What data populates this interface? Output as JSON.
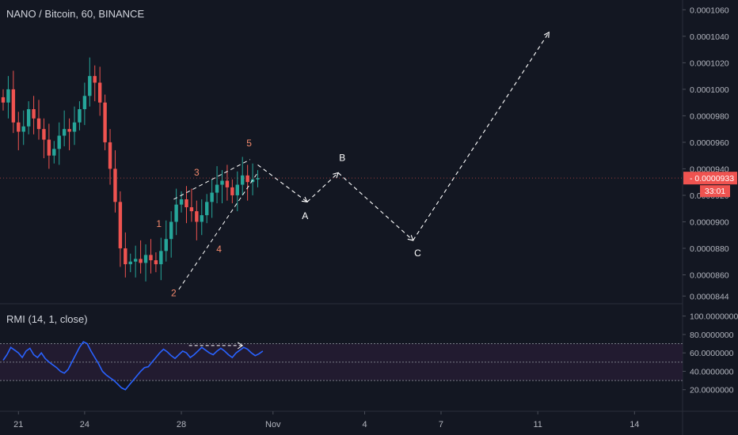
{
  "header": {
    "title": "NANO / Bitcoin, 60, BINANCE"
  },
  "indicator": {
    "title": "RMI (14, 1, close)"
  },
  "colors": {
    "background": "#131722",
    "up": "#26a69a",
    "down": "#ef5350",
    "text": "#d1d4dc",
    "axis_text": "#b2b5be",
    "price_tag": "#ef5350",
    "rmi_line": "#2962ff",
    "rmi_band_fill": "#2a1e36",
    "annotation_wave": "#f48a6d",
    "annotation_abc": "#ffffff"
  },
  "price_tag": {
    "price": "0.0000933",
    "countdown": "33:01"
  },
  "chart_data": [
    {
      "type": "candlestick",
      "title": "NANO / Bitcoin, 60, BINANCE",
      "y_axis_labels": [
        "0.0001060",
        "0.0001040",
        "0.0001020",
        "0.0001000",
        "0.0000980",
        "0.0000960",
        "0.0000940",
        "0.0000920",
        "0.0000900",
        "0.0000880",
        "0.0000860",
        "0.0000844"
      ],
      "ylim": [
        8.4e-05,
        0.0001062
      ],
      "x_axis_labels": [
        "21",
        "24",
        "28",
        "Nov",
        "4",
        "7",
        "11",
        "14"
      ],
      "x_label_index": [
        3,
        16,
        35,
        53,
        71,
        86,
        105,
        124
      ],
      "n_slots": 131,
      "visible_candles": 51,
      "closes": [
        9.9e-05,
        0.0001,
        9.75e-05,
        9.68e-05,
        9.72e-05,
        9.85e-05,
        9.78e-05,
        9.7e-05,
        9.62e-05,
        9.5e-05,
        9.55e-05,
        9.65e-05,
        9.7e-05,
        9.68e-05,
        9.75e-05,
        9.85e-05,
        9.95e-05,
        0.000101,
        0.0001005,
        9.9e-05,
        9.6e-05,
        9.4e-05,
        9.15e-05,
        8.8e-05,
        8.68e-05,
        8.7e-05,
        8.72e-05,
        8.69e-05,
        8.75e-05,
        8.71e-05,
        8.68e-05,
        8.78e-05,
        8.87e-05,
        9e-05,
        9.13e-05,
        9.17e-05,
        9.11e-05,
        9.08e-05,
        9e-05,
        9.05e-05,
        9.15e-05,
        9.22e-05,
        9.28e-05,
        9.31e-05,
        9.26e-05,
        9.2e-05,
        9.28e-05,
        9.35e-05,
        9.3e-05,
        9.32e-05,
        9.33e-05
      ],
      "wave_labels": [
        {
          "text": "1",
          "index": 30.6,
          "price": 8.96e-05
        },
        {
          "text": "2",
          "index": 33.5,
          "price": 8.44e-05
        },
        {
          "text": "3",
          "index": 38.0,
          "price": 9.35e-05
        },
        {
          "text": "4",
          "index": 42.4,
          "price": 8.77e-05
        },
        {
          "text": "5",
          "index": 48.3,
          "price": 9.57e-05
        }
      ],
      "abc_labels": [
        {
          "text": "A",
          "index": 59.3,
          "price": 9.02e-05
        },
        {
          "text": "B",
          "index": 66.6,
          "price": 9.46e-05
        },
        {
          "text": "C",
          "index": 81.4,
          "price": 8.74e-05
        }
      ],
      "forecast_path": [
        {
          "index": 50.0,
          "price": 9.43e-05
        },
        {
          "index": 59.7,
          "price": 9.15e-05
        },
        {
          "index": 65.8,
          "price": 9.37e-05
        },
        {
          "index": 80.5,
          "price": 8.86e-05
        },
        {
          "index": 107.2,
          "price": 0.0001043
        }
      ],
      "channel_upper": [
        {
          "index": 33.5,
          "price": 9.17e-05
        },
        {
          "index": 48.5,
          "price": 9.47e-05
        }
      ],
      "channel_lower": [
        {
          "index": 34.5,
          "price": 8.49e-05
        },
        {
          "index": 49.8,
          "price": 9.36e-05
        }
      ]
    },
    {
      "type": "line",
      "title": "RMI (14, 1, close)",
      "y_axis_labels": [
        "100.0000000",
        "80.0000000",
        "60.0000000",
        "40.0000000",
        "20.0000000"
      ],
      "ylim": [
        0,
        110
      ],
      "bands": [
        70,
        50,
        30
      ],
      "series": [
        {
          "values": [
            52,
            58,
            66,
            63,
            60,
            55,
            62,
            65,
            58,
            55,
            60,
            54,
            50,
            47,
            44,
            40,
            38,
            42,
            50,
            58,
            66,
            72,
            70,
            62,
            55,
            48,
            40,
            36,
            33,
            30,
            26,
            22,
            20,
            25,
            30,
            35,
            40,
            44,
            45,
            50,
            55,
            60,
            64,
            61,
            57,
            54,
            58,
            62,
            60,
            55,
            58,
            62,
            66,
            63,
            60,
            58,
            62,
            65,
            62,
            58,
            55,
            60,
            63,
            66,
            64,
            60,
            57,
            59,
            62
          ]
        }
      ],
      "highlight_arrow": {
        "from_index": 36.5,
        "to_index": 47.0,
        "value": 68
      }
    }
  ]
}
